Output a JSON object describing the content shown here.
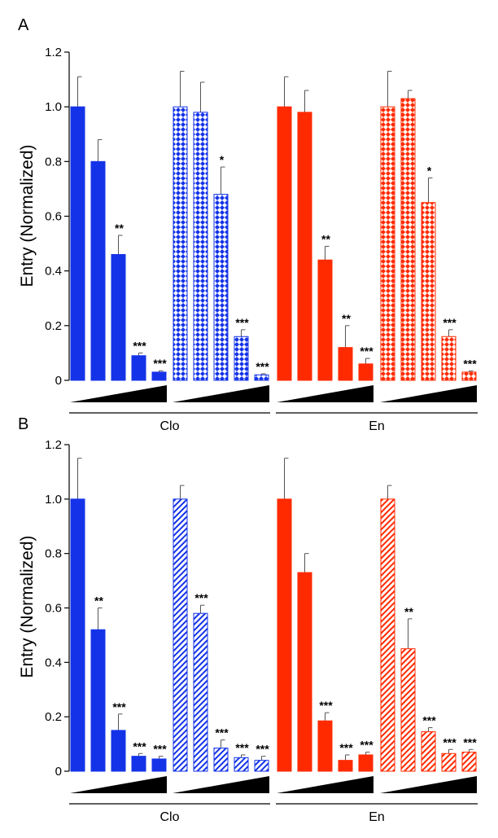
{
  "chart_data": [
    {
      "panel_label": "A",
      "type": "bar",
      "ylabel": "Entry (Normalized)",
      "ylim": [
        0,
        1.2
      ],
      "yticks": [
        "0",
        "0.2",
        "0.4",
        "0.6",
        "0.8",
        "1.0",
        "1.2"
      ],
      "group_labels": [
        "Clo",
        "En"
      ],
      "series": [
        {
          "name": "blue-solid",
          "color": "#1433e8",
          "pattern": "solid",
          "values": [
            1.0,
            0.8,
            0.46,
            0.09,
            0.03
          ],
          "errors": [
            0.11,
            0.08,
            0.07,
            0.01,
            0.005
          ],
          "sig": [
            "",
            "",
            "**",
            "***",
            "***"
          ]
        },
        {
          "name": "blue-diamond",
          "color": "#1433e8",
          "pattern": "diamond",
          "values": [
            1.0,
            0.98,
            0.68,
            0.16,
            0.02
          ],
          "errors": [
            0.13,
            0.11,
            0.1,
            0.025,
            0.004
          ],
          "sig": [
            "",
            "",
            "*",
            "***",
            "***"
          ]
        },
        {
          "name": "red-solid",
          "color": "#ff2a00",
          "pattern": "solid",
          "values": [
            1.0,
            0.98,
            0.44,
            0.12,
            0.06
          ],
          "errors": [
            0.11,
            0.08,
            0.05,
            0.08,
            0.02
          ],
          "sig": [
            "",
            "",
            "**",
            "**",
            "***"
          ]
        },
        {
          "name": "red-diamond",
          "color": "#ff2a00",
          "pattern": "diamond",
          "values": [
            1.0,
            1.03,
            0.65,
            0.16,
            0.03
          ],
          "errors": [
            0.13,
            0.03,
            0.09,
            0.025,
            0.004
          ],
          "sig": [
            "",
            "",
            "*",
            "***",
            "***"
          ]
        }
      ]
    },
    {
      "panel_label": "B",
      "type": "bar",
      "ylabel": "Entry (Normalized)",
      "ylim": [
        0,
        1.2
      ],
      "yticks": [
        "0",
        "0.2",
        "0.4",
        "0.6",
        "0.8",
        "1.0",
        "1.2"
      ],
      "group_labels": [
        "Clo",
        "En"
      ],
      "series": [
        {
          "name": "blue-solid",
          "color": "#1433e8",
          "pattern": "solid",
          "values": [
            1.0,
            0.52,
            0.15,
            0.055,
            0.045
          ],
          "errors": [
            0.15,
            0.08,
            0.06,
            0.01,
            0.01
          ],
          "sig": [
            "",
            "**",
            "***",
            "***",
            "***"
          ]
        },
        {
          "name": "blue-hatch",
          "color": "#1433e8",
          "pattern": "hatch",
          "values": [
            1.0,
            0.58,
            0.085,
            0.05,
            0.04
          ],
          "errors": [
            0.05,
            0.03,
            0.03,
            0.01,
            0.015
          ],
          "sig": [
            "",
            "***",
            "***",
            "***",
            "***"
          ]
        },
        {
          "name": "red-solid",
          "color": "#ff2a00",
          "pattern": "solid",
          "values": [
            1.0,
            0.73,
            0.185,
            0.04,
            0.06
          ],
          "errors": [
            0.15,
            0.07,
            0.03,
            0.02,
            0.01
          ],
          "sig": [
            "",
            "",
            "***",
            "***",
            "***"
          ]
        },
        {
          "name": "red-hatch",
          "color": "#ff2a00",
          "pattern": "hatch",
          "values": [
            1.0,
            0.45,
            0.145,
            0.065,
            0.07
          ],
          "errors": [
            0.05,
            0.11,
            0.015,
            0.015,
            0.01
          ],
          "sig": [
            "",
            "**",
            "***",
            "***",
            "***"
          ]
        }
      ]
    }
  ]
}
